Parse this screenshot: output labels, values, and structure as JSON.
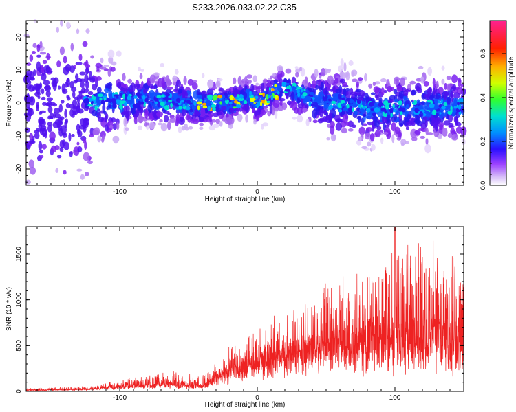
{
  "title": "S233.2026.033.02.22.C35",
  "chart_data": [
    {
      "type": "heatmap",
      "xlabel": "Height of straight line (km)",
      "ylabel": "Frequency (Hz)",
      "xlim": [
        -168,
        150
      ],
      "ylim": [
        -25,
        25
      ],
      "xticks": [
        "-100",
        "0",
        "100"
      ],
      "yticks": [
        "-20",
        "-10",
        "0",
        "10",
        "20"
      ],
      "colorbar": {
        "label": "Normalized spectral amplitude",
        "range": [
          0.0,
          0.75
        ],
        "ticks": [
          "0.0",
          "0.2",
          "0.4",
          "0.6"
        ]
      },
      "description_band": {
        "center_freq_hz": [
          {
            "x": -135,
            "f": 0
          },
          {
            "x": -80,
            "f": 1
          },
          {
            "x": -50,
            "f": 0
          },
          {
            "x": -20,
            "f": 0
          },
          {
            "x": -5,
            "f": 2
          },
          {
            "x": 0,
            "f": 0
          },
          {
            "x": 20,
            "f": 5
          },
          {
            "x": 40,
            "f": 1
          },
          {
            "x": 80,
            "f": -2
          },
          {
            "x": 150,
            "f": -1
          }
        ]
      }
    },
    {
      "type": "line",
      "xlabel": "Height of straight line (km)",
      "ylabel": "SNR (10 * v/v)",
      "xlim": [
        -168,
        150
      ],
      "ylim": [
        0,
        1800
      ],
      "xticks": [
        "-100",
        "0",
        "100"
      ],
      "yticks": [
        "0",
        "500",
        "1000",
        "1500"
      ],
      "color": "#ee2222",
      "envelope": [
        {
          "x": -168,
          "base": 10,
          "amp": 25
        },
        {
          "x": -120,
          "base": 20,
          "amp": 40
        },
        {
          "x": -100,
          "base": 40,
          "amp": 80
        },
        {
          "x": -60,
          "base": 60,
          "amp": 150
        },
        {
          "x": -40,
          "base": 40,
          "amp": 120
        },
        {
          "x": -25,
          "base": 150,
          "amp": 250
        },
        {
          "x": 0,
          "base": 280,
          "amp": 350
        },
        {
          "x": 25,
          "base": 350,
          "amp": 500
        },
        {
          "x": 50,
          "base": 400,
          "amp": 800
        },
        {
          "x": 90,
          "base": 400,
          "amp": 1100
        },
        {
          "x": 120,
          "base": 380,
          "amp": 1300
        },
        {
          "x": 150,
          "base": 350,
          "amp": 1000
        }
      ],
      "peak": {
        "x": 100,
        "y": 1800
      }
    }
  ]
}
